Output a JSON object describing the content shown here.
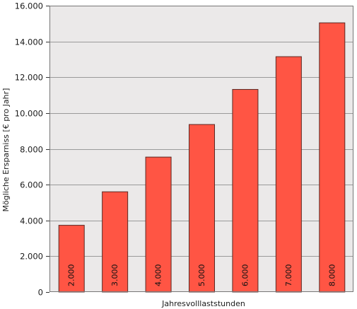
{
  "chart_data": {
    "type": "bar",
    "categories": [
      "2.000",
      "3.000",
      "4.000",
      "5.000",
      "6.000",
      "7.000",
      "8.000"
    ],
    "values": [
      3750,
      5620,
      7560,
      9380,
      11340,
      13170,
      15060
    ],
    "xlabel": "Jahresvolllaststunden",
    "ylabel": "Mögliche Ersparniss [€ pro Jahr]",
    "ylim": [
      0,
      16000
    ],
    "yticks": [
      0,
      2000,
      4000,
      6000,
      8000,
      10000,
      12000,
      14000,
      16000
    ],
    "ytick_labels": [
      "0",
      "2.000",
      "4.000",
      "6.000",
      "8.000",
      "10.000",
      "12.000",
      "14.000",
      "16.000"
    ],
    "bar_labels_inside": true,
    "grid": true,
    "legend": "none",
    "colors": {
      "bar_fill": "#ff5544",
      "bar_stroke": "#5a2a24",
      "plot_background": "#ebe9e9",
      "grid": "#9a9a9a",
      "frame": "#777777"
    }
  }
}
